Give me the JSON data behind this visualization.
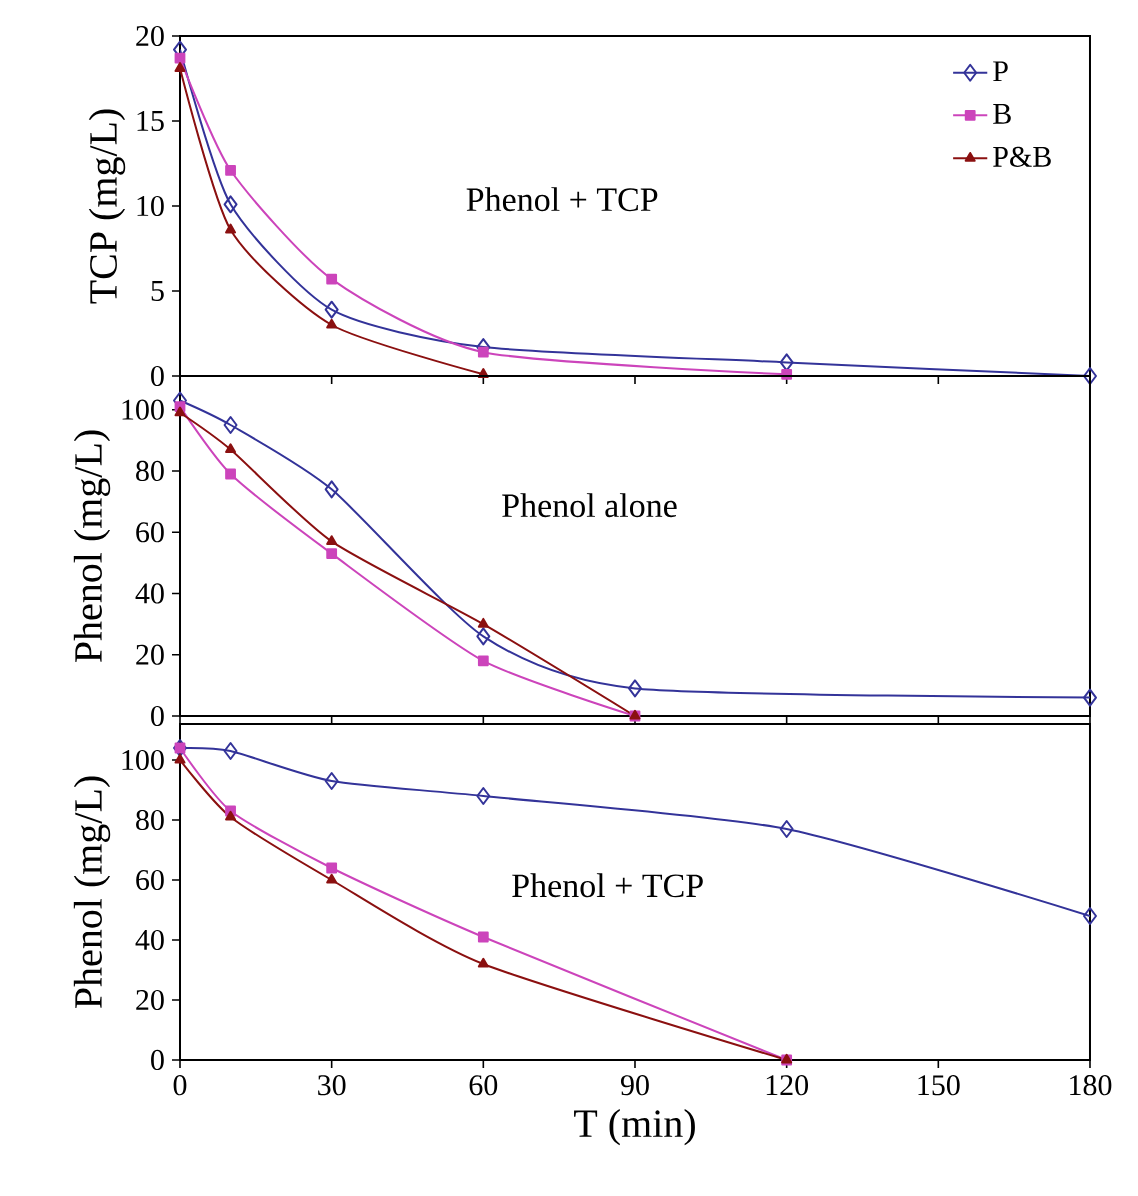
{
  "chart_data": [
    {
      "type": "line",
      "ylabel": "TCP (mg/L)",
      "annotations": [
        "Phenol + TCP"
      ],
      "xlim": [
        0,
        180
      ],
      "xticks": [
        0,
        30,
        60,
        90,
        120,
        150,
        180
      ],
      "ylim": [
        0,
        20
      ],
      "yticks": [
        0,
        5,
        10,
        15,
        20
      ],
      "tick_labels": "y",
      "legend": "top right",
      "series": [
        {
          "name": "P",
          "color": "#333399",
          "marker": "diamond",
          "x": [
            0,
            10,
            30,
            60,
            120,
            180
          ],
          "values": [
            19.2,
            10.1,
            3.9,
            1.7,
            0.8,
            0
          ]
        },
        {
          "name": "B",
          "color": "#cc44bb",
          "marker": "square",
          "x": [
            0,
            10,
            30,
            60,
            120
          ],
          "values": [
            18.7,
            12.1,
            5.7,
            1.4,
            0.1
          ]
        },
        {
          "name": "P&B",
          "color": "#8b1010",
          "marker": "triangle",
          "x": [
            0,
            10,
            30,
            60
          ],
          "values": [
            18.1,
            8.6,
            3.0,
            0.1
          ]
        }
      ]
    },
    {
      "type": "line",
      "ylabel": "Phenol (mg/L)",
      "annotations": [
        "Phenol alone"
      ],
      "xlim": [
        0,
        180
      ],
      "xticks": [
        0,
        30,
        60,
        90,
        120,
        150,
        180
      ],
      "ylim": [
        0,
        111
      ],
      "yticks": [
        0,
        20,
        40,
        60,
        80,
        100
      ],
      "tick_labels": "y",
      "series": [
        {
          "color": "#333399",
          "marker": "diamond",
          "x": [
            0,
            10,
            30,
            60,
            90,
            180
          ],
          "values": [
            103,
            95,
            74,
            26,
            9,
            6
          ]
        },
        {
          "color": "#cc44bb",
          "marker": "square",
          "x": [
            0,
            10,
            30,
            60,
            90
          ],
          "values": [
            101,
            79,
            53,
            18,
            0
          ]
        },
        {
          "color": "#8b1010",
          "marker": "triangle",
          "x": [
            0,
            10,
            30,
            60,
            90
          ],
          "values": [
            99,
            87,
            57,
            30,
            0
          ]
        }
      ]
    },
    {
      "type": "line",
      "ylabel": "Phenol (mg/L)",
      "xlabel": "T (min)",
      "annotations": [
        "Phenol + TCP"
      ],
      "xlim": [
        0,
        180
      ],
      "xticks": [
        0,
        30,
        60,
        90,
        120,
        150,
        180
      ],
      "ylim": [
        0,
        112
      ],
      "yticks": [
        0,
        20,
        40,
        60,
        80,
        100
      ],
      "series": [
        {
          "color": "#333399",
          "marker": "diamond",
          "x": [
            0,
            10,
            30,
            60,
            120,
            180
          ],
          "values": [
            104,
            103,
            93,
            88,
            77,
            48
          ]
        },
        {
          "color": "#cc44bb",
          "marker": "square",
          "x": [
            0,
            10,
            30,
            60,
            120
          ],
          "values": [
            104,
            83,
            64,
            41,
            0
          ]
        },
        {
          "color": "#8b1010",
          "marker": "triangle",
          "x": [
            0,
            10,
            30,
            60,
            120
          ],
          "values": [
            100,
            81,
            60,
            32,
            0
          ]
        }
      ]
    }
  ]
}
